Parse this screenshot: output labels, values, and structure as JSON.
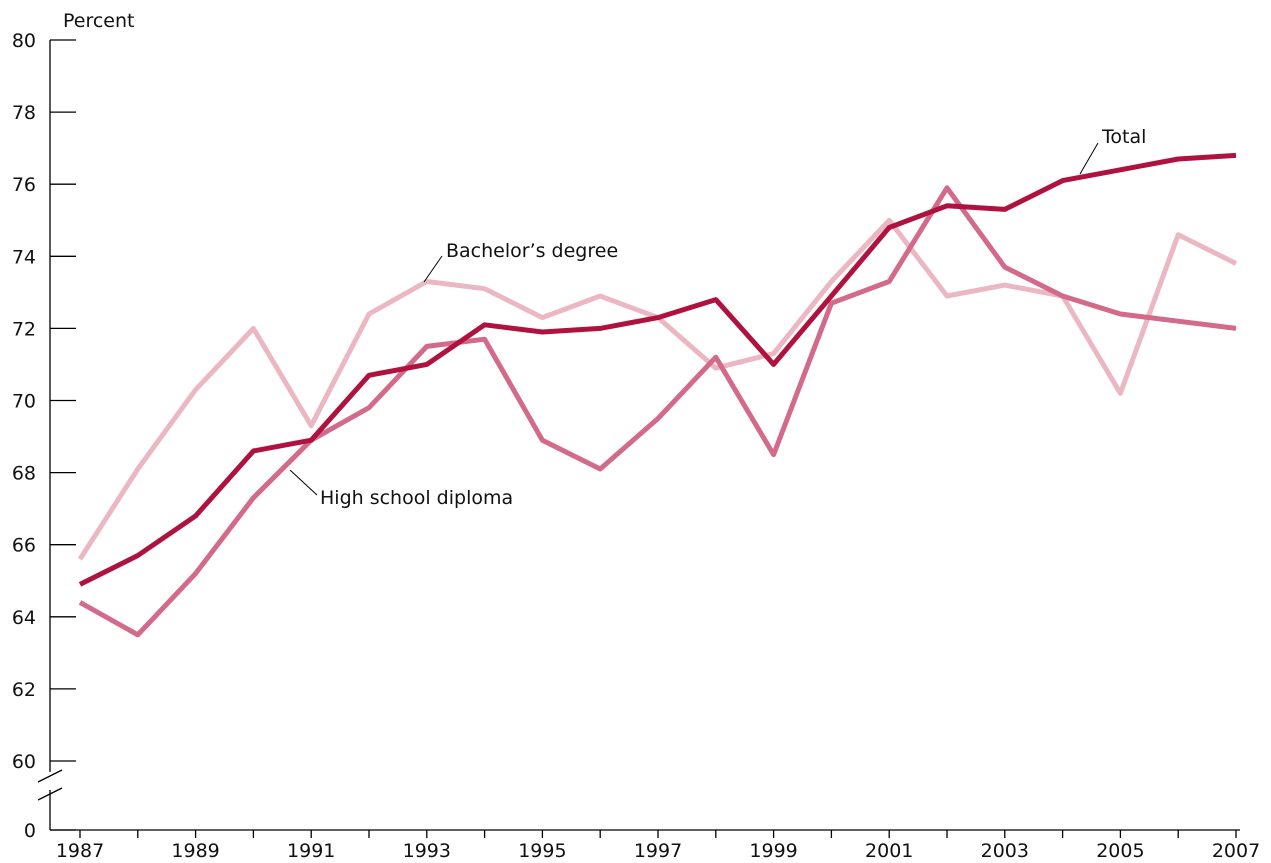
{
  "chart_data": {
    "type": "line",
    "ylabel": "Percent",
    "x": [
      1987,
      1988,
      1989,
      1990,
      1991,
      1992,
      1993,
      1994,
      1995,
      1996,
      1997,
      1998,
      1999,
      2000,
      2001,
      2002,
      2003,
      2004,
      2005,
      2006,
      2007
    ],
    "x_tick_labels": [
      "1987",
      "1989",
      "1991",
      "1993",
      "1995",
      "1997",
      "1999",
      "2001",
      "2003",
      "2005",
      "2007"
    ],
    "y_tick_labels": [
      "80",
      "78",
      "76",
      "74",
      "72",
      "70",
      "68",
      "66",
      "64",
      "62",
      "60",
      "0"
    ],
    "ylim": [
      60,
      80
    ],
    "y_axis_break": true,
    "grid": false,
    "series": [
      {
        "name": "Total",
        "color": "#b0123f",
        "values": [
          64.9,
          65.7,
          66.8,
          68.6,
          68.9,
          70.7,
          71.0,
          72.1,
          71.9,
          72.0,
          72.3,
          72.8,
          71.0,
          72.9,
          74.8,
          75.4,
          75.3,
          76.1,
          76.4,
          76.7,
          76.8
        ]
      },
      {
        "name": "Bachelor’s degree",
        "color": "#ebb7c3",
        "values": [
          65.6,
          68.1,
          70.3,
          72.0,
          69.3,
          72.4,
          73.3,
          73.1,
          72.3,
          72.9,
          72.3,
          70.9,
          71.3,
          73.3,
          75.0,
          72.9,
          73.2,
          72.9,
          70.2,
          74.6,
          73.8
        ]
      },
      {
        "name": "High school diploma",
        "color": "#d46a8a",
        "values": [
          64.4,
          63.5,
          65.2,
          67.3,
          68.9,
          69.8,
          71.5,
          71.7,
          68.9,
          68.1,
          69.5,
          71.2,
          68.5,
          72.7,
          73.3,
          75.9,
          73.7,
          72.9,
          72.4,
          72.2,
          72.0
        ]
      }
    ]
  }
}
